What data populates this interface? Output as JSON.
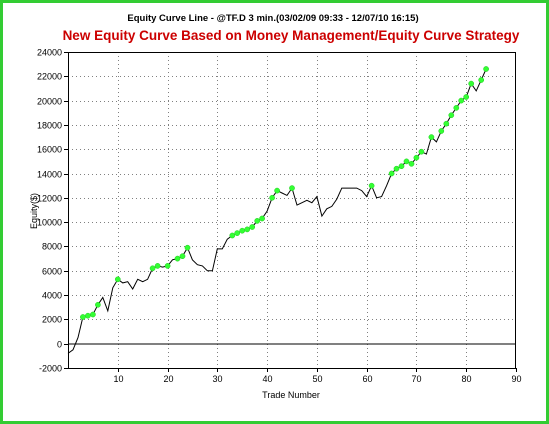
{
  "colors": {
    "border": "#33cc33",
    "title": "#000000",
    "subtitle": "#cc0000",
    "line": "#000000",
    "marker": "#33ff33",
    "grid": "#808080"
  },
  "chart_data": {
    "type": "line",
    "title": "Equity Curve Line - @TF.D 3 min.(03/02/09 09:33 - 12/07/10 16:15)",
    "subtitle": "New Equity Curve Based on Money Management/Equity Curve Strategy",
    "xlabel": "Trade Number",
    "ylabel": "Equity($)",
    "xlim": [
      0,
      90
    ],
    "ylim": [
      -2000,
      24000
    ],
    "xticks": [
      10,
      20,
      30,
      40,
      50,
      60,
      70,
      80,
      90
    ],
    "yticks": [
      -2000,
      0,
      2000,
      4000,
      6000,
      8000,
      10000,
      12000,
      14000,
      16000,
      18000,
      20000,
      22000,
      24000
    ],
    "grid": true,
    "series": [
      {
        "values": [
          [
            0,
            -800
          ],
          [
            1,
            -500
          ],
          [
            2,
            500
          ],
          [
            3,
            2200
          ],
          [
            4,
            2300
          ],
          [
            5,
            2400
          ],
          [
            6,
            3200
          ],
          [
            7,
            3800
          ],
          [
            8,
            2700
          ],
          [
            9,
            4600
          ],
          [
            10,
            5300
          ],
          [
            11,
            5000
          ],
          [
            12,
            5100
          ],
          [
            13,
            4500
          ],
          [
            14,
            5300
          ],
          [
            15,
            5100
          ],
          [
            16,
            5300
          ],
          [
            17,
            6200
          ],
          [
            18,
            6400
          ],
          [
            19,
            6300
          ],
          [
            20,
            6400
          ],
          [
            21,
            6900
          ],
          [
            22,
            7000
          ],
          [
            23,
            7200
          ],
          [
            24,
            7900
          ],
          [
            25,
            6900
          ],
          [
            26,
            6500
          ],
          [
            27,
            6400
          ],
          [
            28,
            6000
          ],
          [
            29,
            6000
          ],
          [
            30,
            7800
          ],
          [
            31,
            7800
          ],
          [
            32,
            8600
          ],
          [
            33,
            8900
          ],
          [
            34,
            9100
          ],
          [
            35,
            9300
          ],
          [
            36,
            9400
          ],
          [
            37,
            9600
          ],
          [
            38,
            10100
          ],
          [
            39,
            10300
          ],
          [
            40,
            10900
          ],
          [
            41,
            12000
          ],
          [
            42,
            12600
          ],
          [
            43,
            12400
          ],
          [
            44,
            12200
          ],
          [
            45,
            12800
          ],
          [
            46,
            11400
          ],
          [
            47,
            11600
          ],
          [
            48,
            11800
          ],
          [
            49,
            11600
          ],
          [
            50,
            12100
          ],
          [
            51,
            10500
          ],
          [
            52,
            11100
          ],
          [
            53,
            11300
          ],
          [
            54,
            11900
          ],
          [
            55,
            12800
          ],
          [
            56,
            12800
          ],
          [
            57,
            12800
          ],
          [
            58,
            12800
          ],
          [
            59,
            12600
          ],
          [
            60,
            12100
          ],
          [
            61,
            13000
          ],
          [
            62,
            12000
          ],
          [
            63,
            12100
          ],
          [
            64,
            13000
          ],
          [
            65,
            14000
          ],
          [
            66,
            14400
          ],
          [
            67,
            14600
          ],
          [
            68,
            15000
          ],
          [
            69,
            14800
          ],
          [
            70,
            15300
          ],
          [
            71,
            15800
          ],
          [
            72,
            15600
          ],
          [
            73,
            17000
          ],
          [
            74,
            16600
          ],
          [
            75,
            17500
          ],
          [
            76,
            18100
          ],
          [
            77,
            18800
          ],
          [
            78,
            19400
          ],
          [
            79,
            20000
          ],
          [
            80,
            20300
          ],
          [
            81,
            21400
          ],
          [
            82,
            20800
          ],
          [
            83,
            21700
          ],
          [
            84,
            22600
          ]
        ],
        "markers": [
          [
            3,
            2200
          ],
          [
            4,
            2300
          ],
          [
            5,
            2400
          ],
          [
            6,
            3200
          ],
          [
            10,
            5300
          ],
          [
            17,
            6200
          ],
          [
            18,
            6400
          ],
          [
            20,
            6400
          ],
          [
            22,
            7000
          ],
          [
            23,
            7200
          ],
          [
            24,
            7900
          ],
          [
            33,
            8900
          ],
          [
            34,
            9100
          ],
          [
            35,
            9300
          ],
          [
            36,
            9400
          ],
          [
            37,
            9600
          ],
          [
            38,
            10100
          ],
          [
            39,
            10300
          ],
          [
            41,
            12000
          ],
          [
            42,
            12600
          ],
          [
            45,
            12800
          ],
          [
            61,
            13000
          ],
          [
            65,
            14000
          ],
          [
            66,
            14400
          ],
          [
            67,
            14600
          ],
          [
            68,
            15000
          ],
          [
            69,
            14800
          ],
          [
            70,
            15300
          ],
          [
            71,
            15800
          ],
          [
            73,
            17000
          ],
          [
            75,
            17500
          ],
          [
            76,
            18100
          ],
          [
            77,
            18800
          ],
          [
            78,
            19400
          ],
          [
            79,
            20000
          ],
          [
            80,
            20300
          ],
          [
            81,
            21400
          ],
          [
            83,
            21700
          ],
          [
            84,
            22600
          ]
        ]
      }
    ]
  }
}
